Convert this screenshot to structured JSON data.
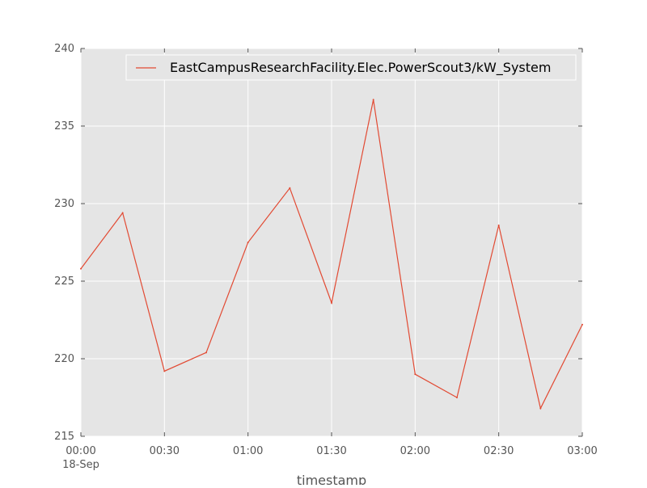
{
  "chart_data": {
    "type": "line",
    "title": "",
    "xlabel": "timestamp",
    "ylabel": "",
    "x": [
      "00:00",
      "00:15",
      "00:30",
      "00:45",
      "01:00",
      "01:15",
      "01:30",
      "01:45",
      "02:00",
      "02:15",
      "02:30",
      "02:45",
      "03:00"
    ],
    "x_ticks": [
      "00:00",
      "00:30",
      "01:00",
      "01:30",
      "02:00",
      "02:30",
      "03:00"
    ],
    "x_date_label": "18-Sep",
    "y_ticks": [
      215,
      220,
      225,
      230,
      235,
      240
    ],
    "ylim": [
      215,
      240
    ],
    "grid": true,
    "legend_position": "top-right",
    "series": [
      {
        "name": "EastCampusResearchFacility.Elec.PowerScout3/kW_System",
        "values": [
          225.8,
          229.4,
          219.2,
          220.4,
          227.5,
          231.0,
          223.6,
          236.7,
          219.0,
          217.5,
          228.6,
          216.8,
          222.2
        ]
      }
    ],
    "colors": {
      "series": "#e24a33",
      "plot_bg": "#e5e5e5",
      "grid": "#ffffff"
    }
  }
}
